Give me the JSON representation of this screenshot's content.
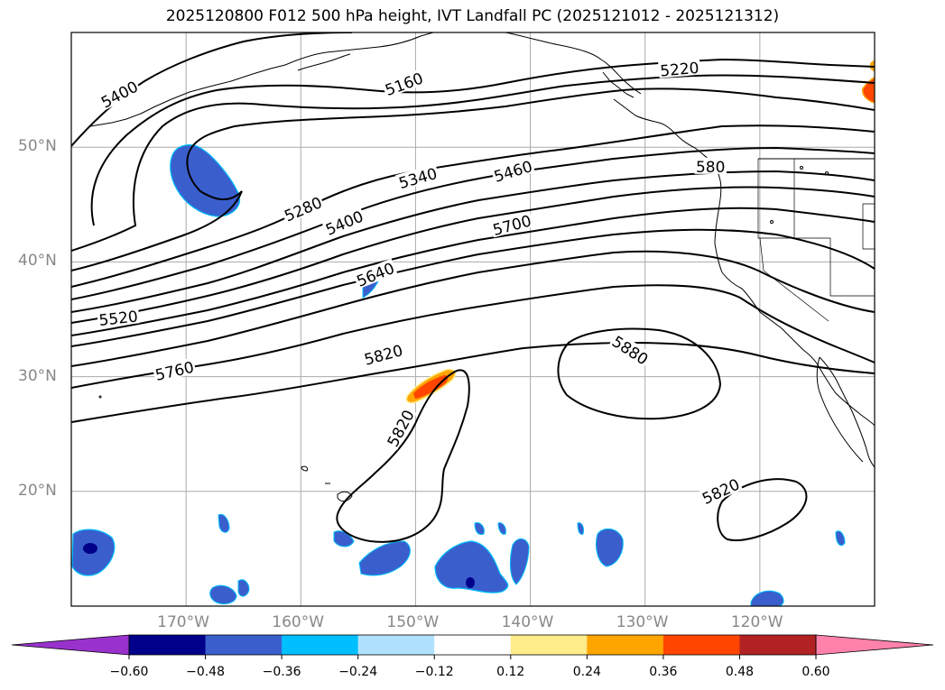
{
  "title": "2025120800 F012 500 hPa height, IVT Landfall PC (2025121012 - 2025121312)",
  "map": {
    "projection": "PlateCarree",
    "extent": {
      "lon_min": -180,
      "lon_max": -110,
      "lat_min": 10,
      "lat_max": 60
    },
    "lat_ticks": [
      {
        "value": 50,
        "label": "50°N"
      },
      {
        "value": 40,
        "label": "40°N"
      },
      {
        "value": 30,
        "label": "30°N"
      },
      {
        "value": 20,
        "label": "20°N"
      }
    ],
    "lon_ticks": [
      {
        "value": -170,
        "label": "170°W"
      },
      {
        "value": -160,
        "label": "160°W"
      },
      {
        "value": -150,
        "label": "150°W"
      },
      {
        "value": -140,
        "label": "140°W"
      },
      {
        "value": -130,
        "label": "130°W"
      },
      {
        "value": -120,
        "label": "120°W"
      }
    ],
    "grid": true,
    "grid_color": "#aaaaaa",
    "contour_color": "#000000",
    "contour_labels": [
      {
        "text": "5400",
        "lon": -175.8,
        "lat": 54.6,
        "angle": -28
      },
      {
        "text": "5160",
        "lon": -151.0,
        "lat": 55.5,
        "angle": -20
      },
      {
        "text": "5220",
        "lon": -127.0,
        "lat": 56.8,
        "angle": -5
      },
      {
        "text": "5340",
        "lon": -149.8,
        "lat": 47.3,
        "angle": -16
      },
      {
        "text": "5460",
        "lon": -141.5,
        "lat": 47.9,
        "angle": -17
      },
      {
        "text": "580",
        "lon": -124.3,
        "lat": 48.3,
        "angle": 0
      },
      {
        "text": "5280",
        "lon": -159.8,
        "lat": 44.6,
        "angle": -23
      },
      {
        "text": "5400",
        "lon": -156.2,
        "lat": 43.4,
        "angle": -23
      },
      {
        "text": "5700",
        "lon": -141.6,
        "lat": 43.2,
        "angle": -15
      },
      {
        "text": "5640",
        "lon": -153.5,
        "lat": 38.9,
        "angle": -22
      },
      {
        "text": "5520",
        "lon": -175.9,
        "lat": 35.1,
        "angle": -6
      },
      {
        "text": "5820",
        "lon": -152.8,
        "lat": 31.9,
        "angle": -15
      },
      {
        "text": "5760",
        "lon": -171.0,
        "lat": 30.5,
        "angle": -13
      },
      {
        "text": "5880",
        "lon": -131.3,
        "lat": 32.3,
        "angle": 33
      },
      {
        "text": "5820",
        "lon": -151.3,
        "lat": 25.5,
        "angle": -62
      },
      {
        "text": "5820",
        "lon": -123.4,
        "lat": 20.0,
        "angle": -25
      }
    ]
  },
  "colorbar": {
    "extend": "both",
    "colors": [
      "#9932CC",
      "#00008B",
      "#3A5FCD",
      "#00BFFF",
      "#B0E2FF",
      "#FFFFFF",
      "#FFEC8B",
      "#FFA500",
      "#FF4500",
      "#B22222",
      "#FF82AB"
    ],
    "tick_values": [
      -0.6,
      -0.48,
      -0.36,
      -0.24,
      -0.12,
      0.12,
      0.24,
      0.36,
      0.48,
      0.6
    ],
    "tick_labels": [
      "−0.60",
      "−0.48",
      "−0.36",
      "−0.24",
      "−0.12",
      "0.12",
      "0.24",
      "0.36",
      "0.48",
      "0.60"
    ]
  }
}
